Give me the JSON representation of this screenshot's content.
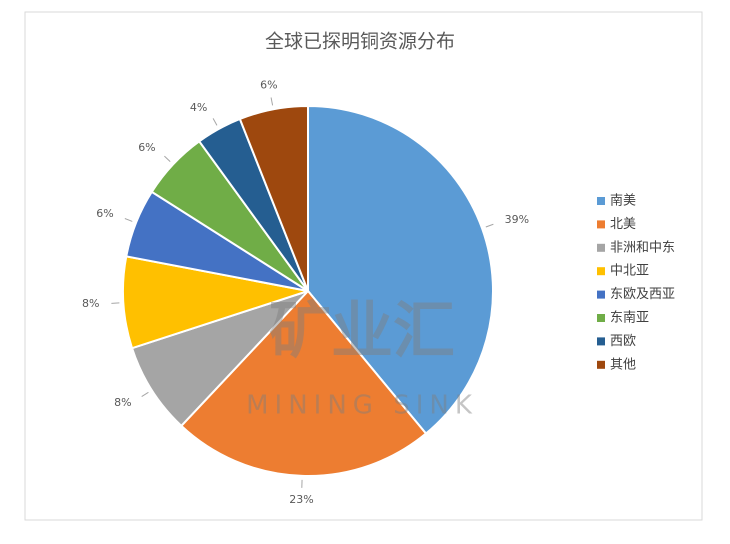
{
  "chart_data": {
    "type": "pie",
    "title": "全球已探明铜资源分布",
    "watermark": [
      "矿业汇",
      "MINING SINK"
    ],
    "categories": [
      "南美",
      "北美",
      "非洲和中东",
      "中北亚",
      "东欧及西亚",
      "东南亚",
      "西欧",
      "其他"
    ],
    "values": [
      39,
      23,
      8,
      8,
      6,
      6,
      4,
      6
    ],
    "value_labels": [
      "39%",
      "23%",
      "8%",
      "8%",
      "6%",
      "6%",
      "4%",
      "6%"
    ],
    "colors": [
      "#5b9bd5",
      "#ed7d31",
      "#a5a5a5",
      "#ffc000",
      "#4472c4",
      "#70ad47",
      "#255e91",
      "#9e480e"
    ],
    "legend": "right"
  }
}
